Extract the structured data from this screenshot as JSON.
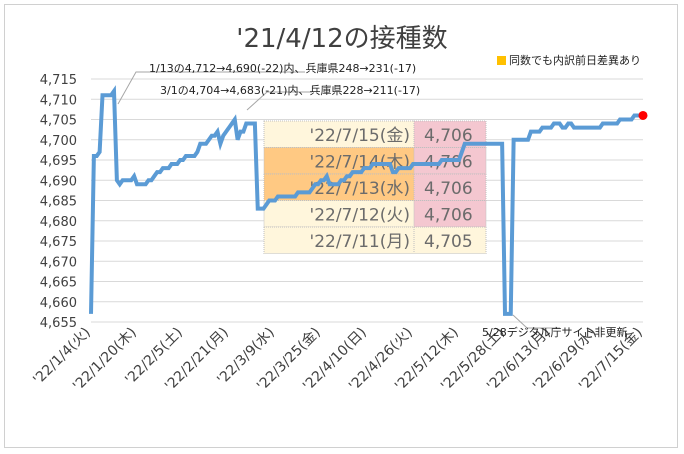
{
  "chart_data": {
    "type": "line",
    "title": "'21/4/12の接種数",
    "legend_label": "同数でも内訳前日差異あり",
    "colors": {
      "line": "#5b9bd5",
      "highlight": "#ffc000",
      "last_point": "#ff0000",
      "table_value_bg": "#f4c7d0",
      "table_date_bg": "#fff6dc",
      "table_date_highlight_bg": "#ffc983"
    },
    "ylim": [
      4655,
      4715
    ],
    "y_ticks": [
      "4,655",
      "4,660",
      "4,665",
      "4,670",
      "4,675",
      "4,680",
      "4,685",
      "4,690",
      "4,695",
      "4,700",
      "4,705",
      "4,710",
      "4,715"
    ],
    "x_tick_labels": [
      "'22/1/4(火)",
      "'22/1/20(木)",
      "'22/2/5(土)",
      "'22/2/21(月)",
      "'22/3/9(水)",
      "'22/3/25(金)",
      "'22/4/10(日)",
      "'22/4/26(火)",
      "'22/5/12(木)",
      "'22/5/28(土)",
      "'22/6/13(月)",
      "'22/6/29(水)",
      "'22/7/15(金)"
    ],
    "x_start": "2022-01-04",
    "x_end": "2022-07-15",
    "series": [
      {
        "points": [
          [
            "2022-01-04",
            4657
          ],
          [
            "2022-01-05",
            4696
          ],
          [
            "2022-01-06",
            4696
          ],
          [
            "2022-01-07",
            4697
          ],
          [
            "2022-01-08",
            4711
          ],
          [
            "2022-01-09",
            4711
          ],
          [
            "2022-01-10",
            4711
          ],
          [
            "2022-01-11",
            4711
          ],
          [
            "2022-01-12",
            4712
          ],
          [
            "2022-01-13",
            4690
          ],
          [
            "2022-01-14",
            4689
          ],
          [
            "2022-01-15",
            4690
          ],
          [
            "2022-01-16",
            4690
          ],
          [
            "2022-01-17",
            4690
          ],
          [
            "2022-01-18",
            4690
          ],
          [
            "2022-01-19",
            4691
          ],
          [
            "2022-01-20",
            4689
          ],
          [
            "2022-01-21",
            4689
          ],
          [
            "2022-01-22",
            4689
          ],
          [
            "2022-01-23",
            4689
          ],
          [
            "2022-01-24",
            4690
          ],
          [
            "2022-01-25",
            4690
          ],
          [
            "2022-01-26",
            4691
          ],
          [
            "2022-01-27",
            4692
          ],
          [
            "2022-01-28",
            4692
          ],
          [
            "2022-01-29",
            4693
          ],
          [
            "2022-01-30",
            4693
          ],
          [
            "2022-01-31",
            4693
          ],
          [
            "2022-02-01",
            4694
          ],
          [
            "2022-02-02",
            4694
          ],
          [
            "2022-02-03",
            4694
          ],
          [
            "2022-02-04",
            4695
          ],
          [
            "2022-02-05",
            4695
          ],
          [
            "2022-02-06",
            4696
          ],
          [
            "2022-02-07",
            4696
          ],
          [
            "2022-02-08",
            4696
          ],
          [
            "2022-02-09",
            4696
          ],
          [
            "2022-02-10",
            4697
          ],
          [
            "2022-02-11",
            4699
          ],
          [
            "2022-02-12",
            4699
          ],
          [
            "2022-02-13",
            4699
          ],
          [
            "2022-02-14",
            4700
          ],
          [
            "2022-02-15",
            4701
          ],
          [
            "2022-02-16",
            4701
          ],
          [
            "2022-02-17",
            4702
          ],
          [
            "2022-02-18",
            4699
          ],
          [
            "2022-02-19",
            4701
          ],
          [
            "2022-02-20",
            4702
          ],
          [
            "2022-02-21",
            4703
          ],
          [
            "2022-02-22",
            4704
          ],
          [
            "2022-02-23",
            4705
          ],
          [
            "2022-02-24",
            4700
          ],
          [
            "2022-02-25",
            4702
          ],
          [
            "2022-02-26",
            4702
          ],
          [
            "2022-02-27",
            4704
          ],
          [
            "2022-02-28",
            4704
          ],
          [
            "2022-03-01",
            4704
          ],
          [
            "2022-03-02",
            4704
          ],
          [
            "2022-03-03",
            4683
          ],
          [
            "2022-03-04",
            4683
          ],
          [
            "2022-03-05",
            4683
          ],
          [
            "2022-03-06",
            4684
          ],
          [
            "2022-03-07",
            4685
          ],
          [
            "2022-03-08",
            4685
          ],
          [
            "2022-03-09",
            4685
          ],
          [
            "2022-03-10",
            4686
          ],
          [
            "2022-03-11",
            4686
          ],
          [
            "2022-03-12",
            4686
          ],
          [
            "2022-03-13",
            4686
          ],
          [
            "2022-03-14",
            4686
          ],
          [
            "2022-03-15",
            4686
          ],
          [
            "2022-03-16",
            4686
          ],
          [
            "2022-03-17",
            4687
          ],
          [
            "2022-03-18",
            4687
          ],
          [
            "2022-03-19",
            4687
          ],
          [
            "2022-03-20",
            4687
          ],
          [
            "2022-03-21",
            4687
          ],
          [
            "2022-03-22",
            4688
          ],
          [
            "2022-03-23",
            4689
          ],
          [
            "2022-03-24",
            4689
          ],
          [
            "2022-03-25",
            4690
          ],
          [
            "2022-03-26",
            4690
          ],
          [
            "2022-03-27",
            4691
          ],
          [
            "2022-03-28",
            4689
          ],
          [
            "2022-03-29",
            4689
          ],
          [
            "2022-03-30",
            4689
          ],
          [
            "2022-03-31",
            4689
          ],
          [
            "2022-04-01",
            4690
          ],
          [
            "2022-04-02",
            4690
          ],
          [
            "2022-04-03",
            4691
          ],
          [
            "2022-04-04",
            4691
          ],
          [
            "2022-04-05",
            4692
          ],
          [
            "2022-04-06",
            4692
          ],
          [
            "2022-04-07",
            4692
          ],
          [
            "2022-04-08",
            4692
          ],
          [
            "2022-04-09",
            4693
          ],
          [
            "2022-04-10",
            4693
          ],
          [
            "2022-04-11",
            4693
          ],
          [
            "2022-04-12",
            4694
          ],
          [
            "2022-04-13",
            4694
          ],
          [
            "2022-04-14",
            4694
          ],
          [
            "2022-04-15",
            4694
          ],
          [
            "2022-04-16",
            4694
          ],
          [
            "2022-04-17",
            4694
          ],
          [
            "2022-04-18",
            4694
          ],
          [
            "2022-04-19",
            4692
          ],
          [
            "2022-04-20",
            4692
          ],
          [
            "2022-04-21",
            4693
          ],
          [
            "2022-04-22",
            4693
          ],
          [
            "2022-04-23",
            4693
          ],
          [
            "2022-04-24",
            4693
          ],
          [
            "2022-04-25",
            4693
          ],
          [
            "2022-04-26",
            4694
          ],
          [
            "2022-04-27",
            4694
          ],
          [
            "2022-04-28",
            4694
          ],
          [
            "2022-04-29",
            4694
          ],
          [
            "2022-04-30",
            4694
          ],
          [
            "2022-05-01",
            4694
          ],
          [
            "2022-05-02",
            4694
          ],
          [
            "2022-05-03",
            4694
          ],
          [
            "2022-05-04",
            4694
          ],
          [
            "2022-05-05",
            4694
          ],
          [
            "2022-05-06",
            4695
          ],
          [
            "2022-05-07",
            4695
          ],
          [
            "2022-05-08",
            4695
          ],
          [
            "2022-05-09",
            4695
          ],
          [
            "2022-05-10",
            4695
          ],
          [
            "2022-05-11",
            4695
          ],
          [
            "2022-05-12",
            4695
          ],
          [
            "2022-05-13",
            4697
          ],
          [
            "2022-05-14",
            4699
          ],
          [
            "2022-05-15",
            4699
          ],
          [
            "2022-05-16",
            4699
          ],
          [
            "2022-05-17",
            4699
          ],
          [
            "2022-05-18",
            4699
          ],
          [
            "2022-05-19",
            4699
          ],
          [
            "2022-05-20",
            4699
          ],
          [
            "2022-05-21",
            4699
          ],
          [
            "2022-05-22",
            4699
          ],
          [
            "2022-05-23",
            4699
          ],
          [
            "2022-05-24",
            4699
          ],
          [
            "2022-05-25",
            4699
          ],
          [
            "2022-05-26",
            4699
          ],
          [
            "2022-05-27",
            4699
          ],
          [
            "2022-05-28",
            4657
          ],
          [
            "2022-05-29",
            4657
          ],
          [
            "2022-05-30",
            4657
          ],
          [
            "2022-05-31",
            4700
          ],
          [
            "2022-06-01",
            4700
          ],
          [
            "2022-06-02",
            4700
          ],
          [
            "2022-06-03",
            4700
          ],
          [
            "2022-06-04",
            4700
          ],
          [
            "2022-06-05",
            4700
          ],
          [
            "2022-06-06",
            4702
          ],
          [
            "2022-06-07",
            4702
          ],
          [
            "2022-06-08",
            4702
          ],
          [
            "2022-06-09",
            4702
          ],
          [
            "2022-06-10",
            4703
          ],
          [
            "2022-06-11",
            4703
          ],
          [
            "2022-06-12",
            4703
          ],
          [
            "2022-06-13",
            4703
          ],
          [
            "2022-06-14",
            4704
          ],
          [
            "2022-06-15",
            4704
          ],
          [
            "2022-06-16",
            4704
          ],
          [
            "2022-06-17",
            4703
          ],
          [
            "2022-06-18",
            4703
          ],
          [
            "2022-06-19",
            4704
          ],
          [
            "2022-06-20",
            4704
          ],
          [
            "2022-06-21",
            4703
          ],
          [
            "2022-06-22",
            4703
          ],
          [
            "2022-06-23",
            4703
          ],
          [
            "2022-06-24",
            4703
          ],
          [
            "2022-06-25",
            4703
          ],
          [
            "2022-06-26",
            4703
          ],
          [
            "2022-06-27",
            4703
          ],
          [
            "2022-06-28",
            4703
          ],
          [
            "2022-06-29",
            4703
          ],
          [
            "2022-06-30",
            4703
          ],
          [
            "2022-07-01",
            4704
          ],
          [
            "2022-07-02",
            4704
          ],
          [
            "2022-07-03",
            4704
          ],
          [
            "2022-07-04",
            4704
          ],
          [
            "2022-07-05",
            4704
          ],
          [
            "2022-07-06",
            4704
          ],
          [
            "2022-07-07",
            4705
          ],
          [
            "2022-07-08",
            4705
          ],
          [
            "2022-07-09",
            4705
          ],
          [
            "2022-07-10",
            4705
          ],
          [
            "2022-07-11",
            4705
          ],
          [
            "2022-07-12",
            4706
          ],
          [
            "2022-07-13",
            4706
          ],
          [
            "2022-07-14",
            4706
          ],
          [
            "2022-07-15",
            4706
          ]
        ]
      }
    ],
    "last_point": [
      "2022-07-15",
      4706
    ],
    "annotations": [
      {
        "text": "1/13の4,712→4,690(-22)内、兵庫県248→231(-17)",
        "date": "2022-01-13",
        "value": 4712
      },
      {
        "text": "3/1の4,704→4,683(-21)内、兵庫県228→211(-17)",
        "date": "2022-03-01",
        "value": 4704
      },
      {
        "text": "5/28デジタル庁サイト非更新",
        "date": "2022-05-28",
        "value": 4657
      }
    ],
    "table": [
      {
        "date": "'22/7/15(金)",
        "value": "4,706",
        "highlight": false,
        "value_highlight": true
      },
      {
        "date": "'22/7/14(木)",
        "value": "4,706",
        "highlight": true,
        "value_highlight": true
      },
      {
        "date": "'22/7/13(水)",
        "value": "4,706",
        "highlight": true,
        "value_highlight": true
      },
      {
        "date": "'22/7/12(火)",
        "value": "4,706",
        "highlight": false,
        "value_highlight": true
      },
      {
        "date": "'22/7/11(月)",
        "value": "4,705",
        "highlight": false,
        "value_highlight": false
      }
    ]
  }
}
